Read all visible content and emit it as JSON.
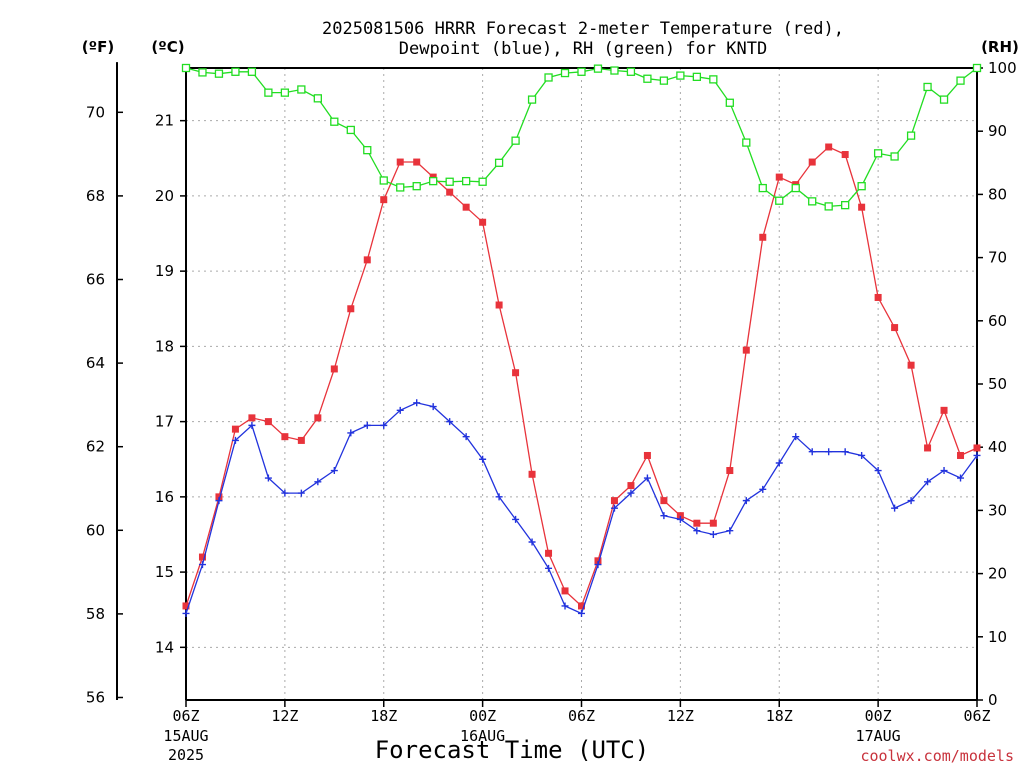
{
  "chart_data": {
    "type": "line",
    "title_line1": "2025081506 HRRR Forecast 2-meter Temperature (red),",
    "title_line2": "Dewpoint (blue), RH (green) for KNTD",
    "xlabel": "Forecast Time (UTC)",
    "unit_f": "(ºF)",
    "unit_c": "(ºC)",
    "unit_rh": "(RH)",
    "watermark": "coolwx.com/models",
    "x_ticks": [
      {
        "h": 0,
        "label": "06Z",
        "date": "15AUG",
        "year": "2025"
      },
      {
        "h": 6,
        "label": "12Z",
        "date": "",
        "year": ""
      },
      {
        "h": 12,
        "label": "18Z",
        "date": "",
        "year": ""
      },
      {
        "h": 18,
        "label": "00Z",
        "date": "16AUG",
        "year": ""
      },
      {
        "h": 24,
        "label": "06Z",
        "date": "",
        "year": ""
      },
      {
        "h": 30,
        "label": "12Z",
        "date": "",
        "year": ""
      },
      {
        "h": 36,
        "label": "18Z",
        "date": "",
        "year": ""
      },
      {
        "h": 42,
        "label": "00Z",
        "date": "17AUG",
        "year": ""
      },
      {
        "h": 48,
        "label": "06Z",
        "date": "",
        "year": ""
      }
    ],
    "xlim": [
      0,
      48
    ],
    "ylim_c": [
      13.3,
      21.7
    ],
    "ylim_rh": [
      0,
      100
    ],
    "ticks_f": [
      56,
      58,
      60,
      62,
      64,
      66,
      68,
      70
    ],
    "ticks_c": [
      14,
      15,
      16,
      17,
      18,
      19,
      20,
      21
    ],
    "ticks_rh": [
      0,
      10,
      20,
      30,
      40,
      50,
      60,
      70,
      80,
      90,
      100
    ],
    "grid": true,
    "series": [
      {
        "name": "Temperature",
        "axis": "c",
        "color": "#e8333b",
        "marker": "filled-square",
        "values": [
          14.55,
          15.2,
          16.0,
          16.9,
          17.05,
          17.0,
          16.8,
          16.75,
          17.05,
          17.7,
          18.5,
          19.15,
          19.95,
          20.45,
          20.45,
          20.25,
          20.05,
          19.85,
          19.65,
          18.55,
          17.65,
          16.3,
          15.25,
          14.75,
          14.55,
          15.15,
          15.95,
          16.15,
          16.55,
          15.95,
          15.75,
          15.65,
          15.65,
          16.35,
          17.95,
          19.45,
          20.25,
          20.15,
          20.45,
          20.65,
          20.55,
          19.85,
          18.65,
          18.25,
          17.75,
          16.65,
          17.15,
          16.55,
          16.65
        ]
      },
      {
        "name": "Dewpoint",
        "axis": "c",
        "color": "#2233dd",
        "marker": "plus",
        "values": [
          14.45,
          15.1,
          15.95,
          16.75,
          16.95,
          16.25,
          16.05,
          16.05,
          16.2,
          16.35,
          16.85,
          16.95,
          16.95,
          17.15,
          17.25,
          17.2,
          17.0,
          16.8,
          16.5,
          16.0,
          15.7,
          15.4,
          15.05,
          14.55,
          14.45,
          15.1,
          15.85,
          16.05,
          16.25,
          15.75,
          15.7,
          15.55,
          15.5,
          15.55,
          15.95,
          16.1,
          16.45,
          16.8,
          16.6,
          16.6,
          16.6,
          16.55,
          16.35,
          15.85,
          15.95,
          16.2,
          16.35,
          16.25,
          16.55
        ]
      },
      {
        "name": "RH",
        "axis": "rh",
        "color": "#22dd22",
        "marker": "open-square",
        "values": [
          100,
          99.3,
          99.1,
          99.4,
          99.4,
          96.1,
          96.1,
          96.6,
          95.2,
          91.5,
          90.2,
          87.0,
          82.2,
          81.1,
          81.3,
          82.1,
          82.0,
          82.1,
          82.0,
          85.0,
          88.5,
          95.0,
          98.5,
          99.2,
          99.4,
          99.9,
          99.6,
          99.4,
          98.3,
          98.0,
          98.8,
          98.6,
          98.2,
          94.5,
          88.2,
          81.0,
          79.0,
          81.0,
          78.9,
          78.1,
          78.3,
          81.3,
          86.5,
          86.0,
          89.3,
          97.0,
          95.0,
          98.0,
          100
        ]
      }
    ]
  }
}
